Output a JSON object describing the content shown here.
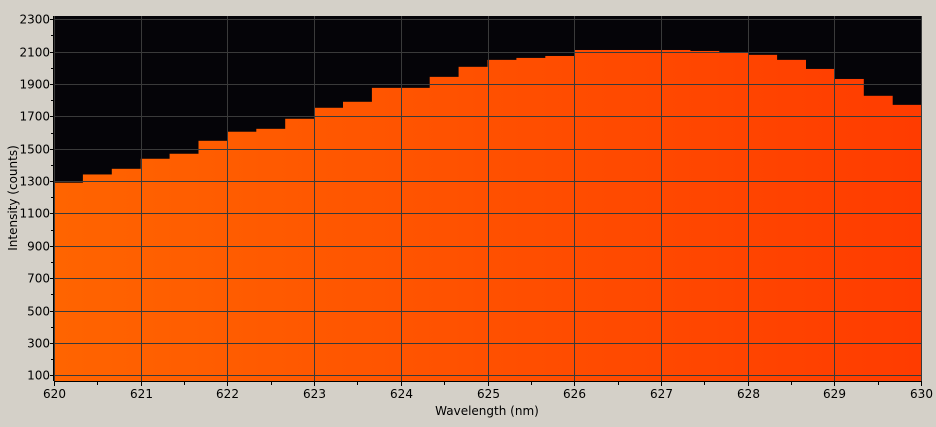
{
  "chart_data": {
    "type": "bar",
    "style": "step histogram with horizontal orange-red gradient fill",
    "xlabel": "Wavelength (nm)",
    "ylabel": "Intensity (counts)",
    "xlim": [
      620,
      630
    ],
    "ylim": [
      65,
      2320
    ],
    "xticks": [
      620,
      621,
      622,
      623,
      624,
      625,
      626,
      627,
      628,
      629,
      630
    ],
    "yticks": [
      100,
      300,
      500,
      700,
      900,
      1100,
      1300,
      1500,
      1700,
      1900,
      2100,
      2300
    ],
    "grid": true,
    "bin_width": 0.3333,
    "values": [
      1290,
      1341,
      1376,
      1438,
      1469,
      1549,
      1605,
      1623,
      1685,
      1753,
      1790,
      1876,
      1876,
      1944,
      2006,
      2049,
      2061,
      2073,
      2110,
      2110,
      2110,
      2110,
      2104,
      2094,
      2080,
      2049,
      1993,
      1931,
      1827,
      1771
    ],
    "colors": {
      "background": "#050408",
      "fill_left": "#ff6400",
      "fill_right": "#ff3c00",
      "grid": "#3a3a3a",
      "frame": "#d4d0c8"
    }
  }
}
